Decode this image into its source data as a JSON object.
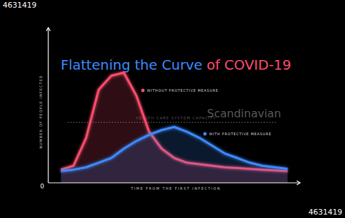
{
  "chart_data": {
    "type": "line",
    "title": [
      "Flattening the Curve",
      "of COVID-19"
    ],
    "x_label": "TIME FROM THE FIRST INFECTION",
    "y_label": "NUMBER OF PEOPLE INFECTED",
    "xlim": [
      0,
      100
    ],
    "ylim": [
      0,
      100
    ],
    "xticks": [],
    "yticks": [
      0
    ],
    "tick_labels": "y",
    "grid": false,
    "x": [
      5,
      10,
      15,
      20,
      25,
      30,
      35,
      40,
      45,
      50,
      55,
      60,
      65,
      70,
      75,
      80,
      85,
      90,
      95
    ],
    "series": [
      {
        "name": "WITHOUT PROTECTIVE MEASURE",
        "color": "#ff4d6d",
        "values": [
          8.5,
          11,
          29,
          60,
          69,
          71,
          56,
          33,
          22,
          16,
          13,
          12,
          11,
          10,
          9.5,
          9,
          8.5,
          8,
          7.5
        ]
      },
      {
        "name": "WITH PROTECTIVE MEASURE",
        "color": "#3d8bff",
        "values": [
          7.5,
          8.5,
          10,
          13,
          16,
          22,
          27,
          31,
          34,
          36,
          33,
          29,
          24,
          19,
          16,
          13,
          11,
          10,
          9
        ]
      }
    ],
    "annotations": [
      {
        "text": "HEALTH CARE SYSTEM CAPACITY",
        "y": 39
      }
    ],
    "watermarks": [
      "4631419",
      "Scandinavian",
      "4631419"
    ]
  }
}
